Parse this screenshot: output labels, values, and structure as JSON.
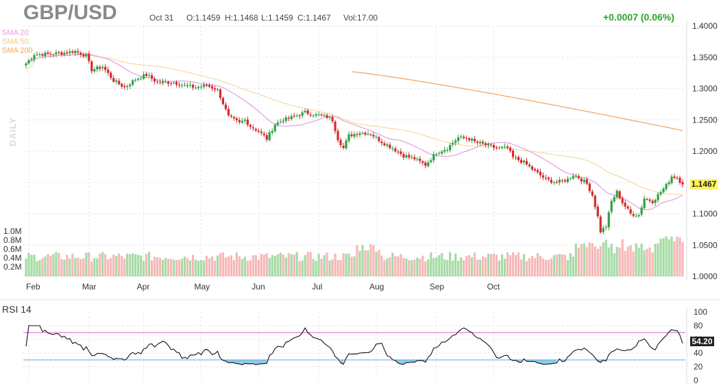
{
  "header": {
    "symbol": "GBP/USD",
    "date": "Oct 31",
    "open": "O:1.1459",
    "high": "H:1.1468",
    "low": "L:1.1459",
    "close": "C:1.1467",
    "volume": "Vol:17.00",
    "change": "+0.0007 (0.06%)"
  },
  "legend": {
    "sma20": "SMA 20",
    "sma50": "SMA 50",
    "sma200": "SMA 200",
    "side_label": "DAILY"
  },
  "rsi": {
    "title": "RSI 14",
    "last_value": "54.20"
  },
  "colors": {
    "up": "#2ea043",
    "down": "#d42a2a",
    "up_volume": "#a6dba5",
    "down_volume": "#f6b8b8",
    "sma20": "#e49ce0",
    "sma50": "#f5d9a0",
    "sma200": "#f0a35e",
    "rsi_line": "#111111",
    "rsi_upper": "#d25cd2",
    "rsi_lower": "#5aa9d6",
    "rsi_fill": "#8ecbea",
    "last_price_tag": "#fff25a"
  },
  "chart_data": [
    {
      "type": "candlestick",
      "title": "GBP/USD",
      "price_axis": {
        "ticks": [
          "1.4000",
          "1.3500",
          "1.3000",
          "1.2500",
          "1.2000",
          "1.1500",
          "1.1000",
          "1.0500",
          "1.0000"
        ],
        "range": [
          1.0,
          1.4
        ]
      },
      "volume_axis": {
        "ticks": [
          "1.0M",
          "0.8M",
          "0.6M",
          "0.4M",
          "0.2M"
        ]
      },
      "months": [
        "Feb",
        "Mar",
        "Apr",
        "May",
        "Jun",
        "Jul",
        "Aug",
        "Sep",
        "Oct"
      ],
      "last_price": "1.1467",
      "close_anchors": [
        [
          0,
          1.34
        ],
        [
          3,
          1.355
        ],
        [
          8,
          1.355
        ],
        [
          14,
          1.357
        ],
        [
          18,
          1.36
        ],
        [
          22,
          1.352
        ],
        [
          24,
          1.33
        ],
        [
          28,
          1.335
        ],
        [
          32,
          1.313
        ],
        [
          36,
          1.302
        ],
        [
          40,
          1.315
        ],
        [
          44,
          1.322
        ],
        [
          48,
          1.31
        ],
        [
          54,
          1.31
        ],
        [
          58,
          1.305
        ],
        [
          62,
          1.302
        ],
        [
          66,
          1.305
        ],
        [
          70,
          1.298
        ],
        [
          74,
          1.255
        ],
        [
          78,
          1.245
        ],
        [
          80,
          1.25
        ],
        [
          82,
          1.24
        ],
        [
          85,
          1.232
        ],
        [
          88,
          1.22
        ],
        [
          91,
          1.243
        ],
        [
          94,
          1.25
        ],
        [
          98,
          1.255
        ],
        [
          102,
          1.262
        ],
        [
          106,
          1.258
        ],
        [
          110,
          1.255
        ],
        [
          112,
          1.25
        ],
        [
          114,
          1.22
        ],
        [
          116,
          1.205
        ],
        [
          118,
          1.225
        ],
        [
          122,
          1.23
        ],
        [
          126,
          1.228
        ],
        [
          130,
          1.215
        ],
        [
          134,
          1.205
        ],
        [
          138,
          1.193
        ],
        [
          142,
          1.188
        ],
        [
          146,
          1.178
        ],
        [
          150,
          1.198
        ],
        [
          154,
          1.205
        ],
        [
          158,
          1.222
        ],
        [
          162,
          1.22
        ],
        [
          164,
          1.215
        ],
        [
          168,
          1.21
        ],
        [
          172,
          1.205
        ],
        [
          176,
          1.205
        ],
        [
          178,
          1.19
        ],
        [
          182,
          1.182
        ],
        [
          186,
          1.168
        ],
        [
          190,
          1.155
        ],
        [
          194,
          1.15
        ],
        [
          198,
          1.155
        ],
        [
          200,
          1.162
        ],
        [
          202,
          1.158
        ],
        [
          205,
          1.148
        ],
        [
          207,
          1.13
        ],
        [
          209,
          1.095
        ],
        [
          210,
          1.072
        ],
        [
          212,
          1.08
        ],
        [
          214,
          1.12
        ],
        [
          216,
          1.135
        ],
        [
          218,
          1.118
        ],
        [
          221,
          1.1
        ],
        [
          224,
          1.098
        ],
        [
          226,
          1.125
        ],
        [
          229,
          1.12
        ],
        [
          231,
          1.13
        ],
        [
          234,
          1.145
        ],
        [
          236,
          1.16
        ],
        [
          238,
          1.158
        ],
        [
          240,
          1.147
        ]
      ],
      "sma200_range": [
        1.327,
        1.233
      ]
    },
    {
      "type": "line",
      "title": "RSI 14",
      "y_ticks": [
        "100",
        "80",
        "60",
        "40",
        "20",
        "0"
      ],
      "upper_band": 70,
      "lower_band": 30,
      "last_value": 54.2
    }
  ]
}
